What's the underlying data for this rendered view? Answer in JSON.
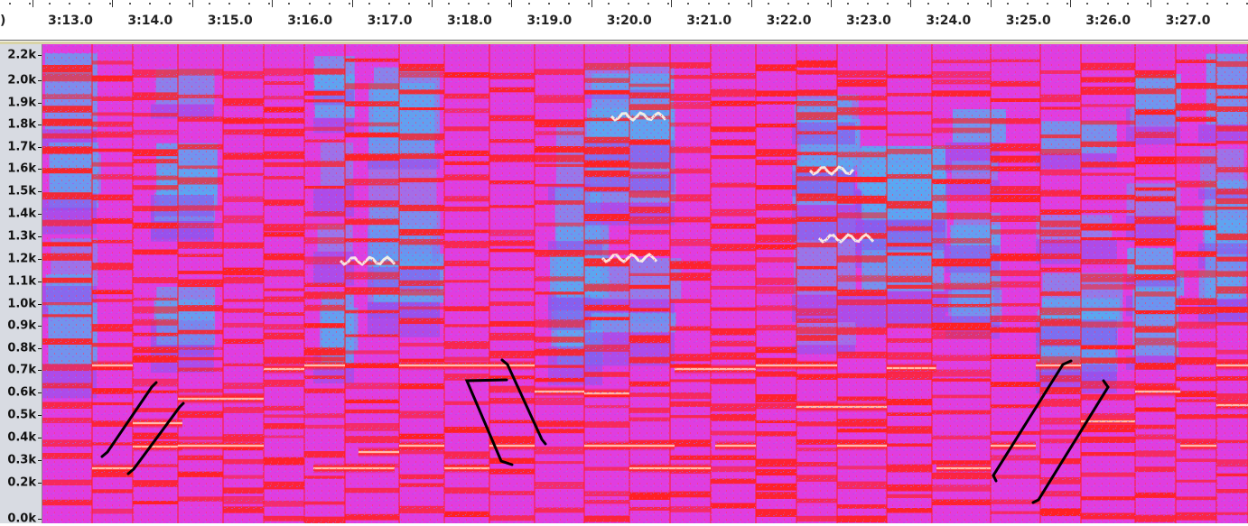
{
  "ruler": {
    "partial_label": ")",
    "labels": [
      "3:13.0",
      "3:14.0",
      "3:15.0",
      "3:16.0",
      "3:17.0",
      "3:18.0",
      "3:19.0",
      "3:20.0",
      "3:21.0",
      "3:22.0",
      "3:23.0",
      "3:24.0",
      "3:25.0",
      "3:26.0",
      "3:27.0"
    ]
  },
  "yaxis": {
    "labels": [
      "2.2k",
      "2.0k",
      "1.9k",
      "1.8k",
      "1.7k",
      "1.6k",
      "1.5k",
      "1.4k",
      "1.3k",
      "1.2k",
      "1.1k",
      "1.0k",
      "0.9k",
      "0.8k",
      "0.7k",
      "0.6k",
      "0.5k",
      "0.4k",
      "0.3k",
      "0.2k",
      "0.0k"
    ]
  },
  "spectrogram": {
    "colors": {
      "background": "#e03de0",
      "cool": "#5aa8f0",
      "mid": "#8a55ee",
      "hot": "#ff2020",
      "peak": "#fff6e6",
      "annotation": "#000000"
    }
  },
  "annotations": {
    "bracket_pairs": 3
  }
}
